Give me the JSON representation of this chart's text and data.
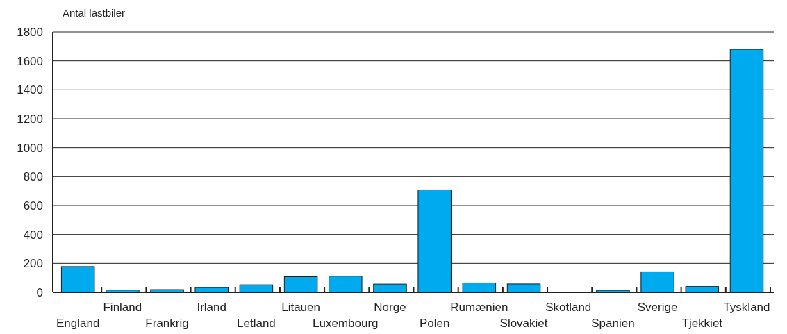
{
  "chart_data": {
    "type": "bar",
    "ylabel": "Antal lastbiler",
    "categories": [
      "England",
      "Finland",
      "Frankrig",
      "Irland",
      "Letland",
      "Litauen",
      "Luxembourg",
      "Norge",
      "Polen",
      "Rumænien",
      "Slovakiet",
      "Skotland",
      "Spanien",
      "Sverige",
      "Tjekkiet",
      "Tyskland"
    ],
    "values": [
      178,
      16,
      19,
      33,
      52,
      108,
      112,
      57,
      708,
      65,
      58,
      0,
      14,
      142,
      40,
      1680
    ],
    "color": "#00aaee",
    "ylim": [
      0,
      1800
    ],
    "yticks": [
      0,
      200,
      400,
      600,
      800,
      1000,
      1200,
      1400,
      1600,
      1800
    ],
    "grid": "y"
  }
}
